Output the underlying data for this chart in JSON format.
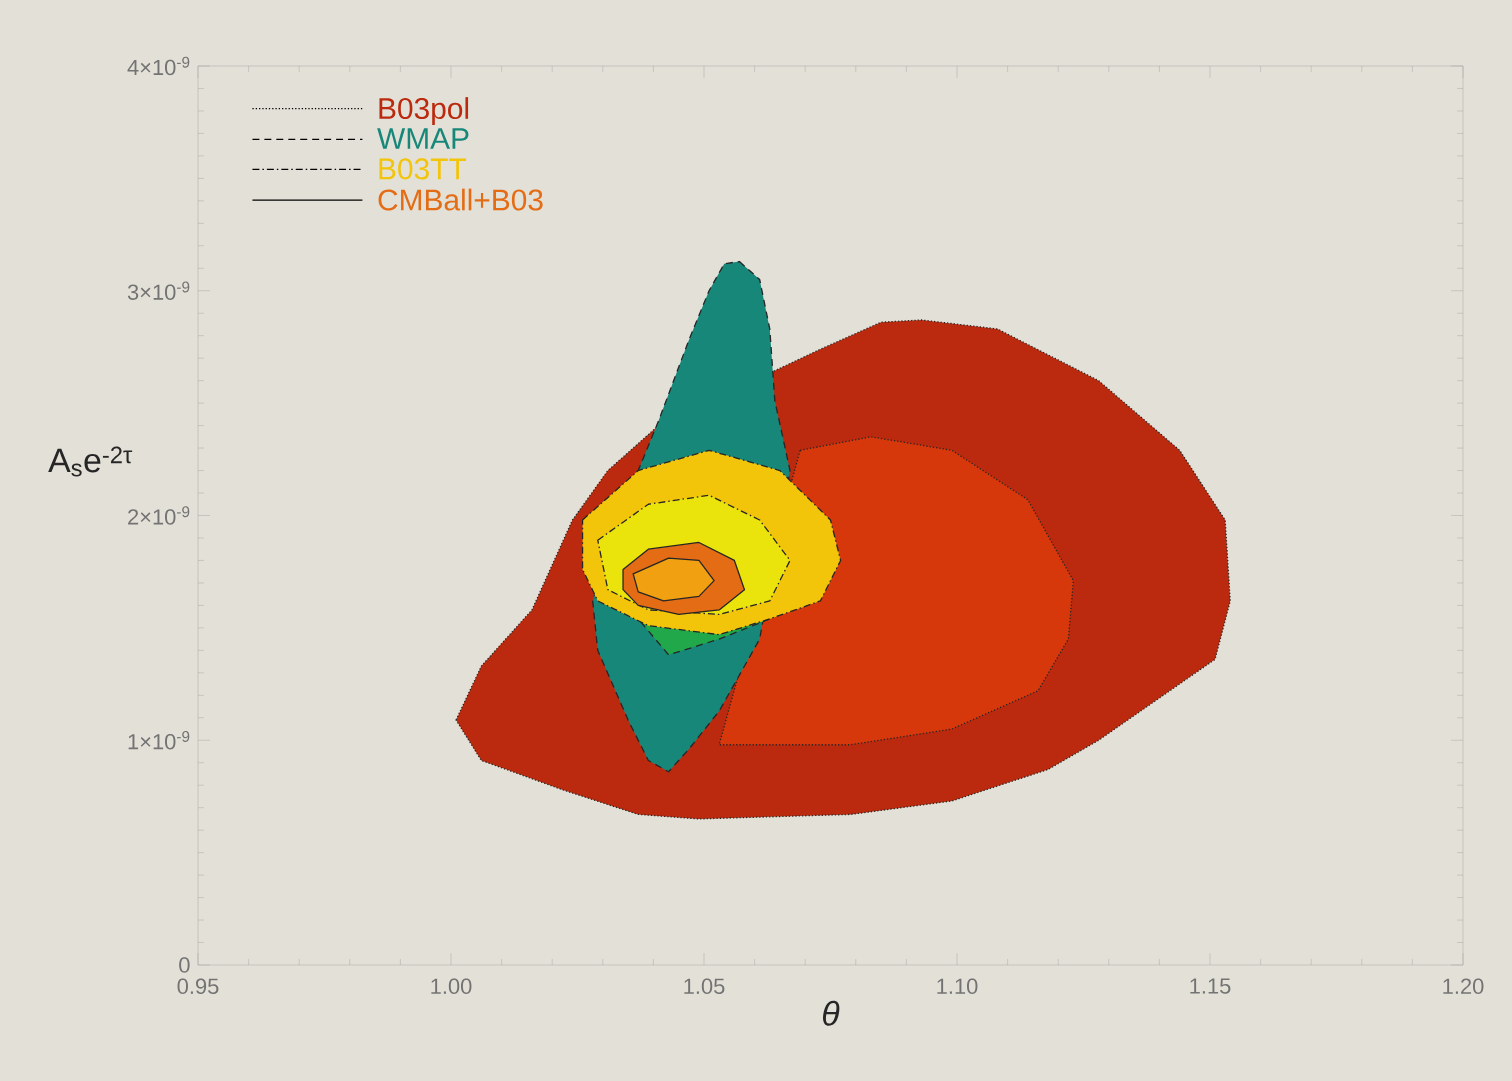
{
  "chart_data": {
    "type": "area",
    "xlabel": "*θ*",
    "ylabel": "A$_{s}$e$^{-2τ}$",
    "xlim": [
      0.95,
      1.2
    ],
    "ylim": [
      0,
      4e-09
    ],
    "xticks": [
      0.95,
      {
        "value": 1.0,
        "label": "1.00"
      },
      1.05,
      {
        "value": 1.1,
        "label": "1.10"
      },
      1.15,
      {
        "value": 1.2,
        "label": "1.20"
      }
    ],
    "yticks": [
      0,
      {
        "value": 1e-09,
        "label": "1×10$^{-9}$"
      },
      {
        "value": 2e-09,
        "label": "2×10$^{-9}$"
      },
      {
        "value": 3e-09,
        "label": "3×10$^{-9}$"
      },
      {
        "value": 4e-09,
        "label": "4×10$^{-9}$"
      }
    ],
    "legend": "top left",
    "grid": false,
    "series": [
      {
        "name": "B03pol",
        "color": "#bb2a0e",
        "line_style": "dotted",
        "x": [
          1.001,
          1.006,
          1.016,
          1.024,
          1.031,
          1.041,
          null,
          1.073,
          1.085,
          1.093,
          1.108,
          1.128,
          1.144,
          1.153,
          1.154,
          1.151,
          1.128,
          1.118,
          1.099,
          1.079,
          1.049,
          1.037,
          1.022,
          1.006
        ],
        "values": [
          1.09e-09,
          1.33e-09,
          1.58e-09,
          1.98e-09,
          2.2e-09,
          2.4e-09,
          null,
          2.74e-09,
          2.86e-09,
          2.87e-09,
          2.83e-09,
          2.6e-09,
          2.29e-09,
          1.98e-09,
          1.62e-09,
          1.36e-09,
          1e-09,
          8.7e-10,
          7.3e-10,
          6.7e-10,
          6.5e-10,
          6.7e-10,
          7.8e-10,
          9.1e-10
        ]
      },
      {
        "color": "#d6380c",
        "line_style": "dotted",
        "x": [
          null,
          null,
          null,
          1.069,
          1.083,
          1.099,
          1.114,
          1.123,
          1.122,
          1.116,
          1.099,
          1.079,
          1.053,
          null,
          null
        ],
        "values": [
          null,
          null,
          null,
          2.29e-09,
          2.35e-09,
          2.29e-09,
          2.07e-09,
          1.71e-09,
          1.45e-09,
          1.22e-09,
          1.05e-09,
          9.8e-10,
          9.8e-10,
          null,
          null
        ]
      },
      {
        "name": "WMAP",
        "color": "#17877a",
        "line_style": "dashed",
        "x": [
          1.057,
          1.061,
          1.063,
          1.064,
          1.067,
          null,
          null,
          1.061,
          1.053,
          1.047,
          1.043,
          1.039,
          1.035,
          1.029,
          1.028,
          null,
          1.037,
          1.041,
          1.047,
          1.051,
          1.054
        ],
        "values": [
          3.13e-09,
          3.05e-09,
          2.83e-09,
          2.51e-09,
          2.2e-09,
          null,
          null,
          1.45e-09,
          1.13e-09,
          9.6e-10,
          8.6e-10,
          9.1e-10,
          1.09e-09,
          1.4e-09,
          1.62e-09,
          null,
          2.2e-09,
          2.42e-09,
          2.78e-09,
          3e-09,
          3.12e-09
        ]
      },
      {
        "color": "#20a84a",
        "line_style": "dashed",
        "x": [
          null,
          null,
          null,
          null,
          1.063,
          1.053,
          1.043,
          1.037,
          null
        ],
        "values": [
          null,
          null,
          null,
          null,
          1.54e-09,
          1.45e-09,
          1.38e-09,
          1.54e-09,
          null
        ]
      },
      {
        "name": "B03TT",
        "color": "#f2c40a",
        "line_style": "dashdot",
        "x": [
          1.026,
          1.037,
          1.051,
          1.065,
          1.075,
          1.077,
          1.073,
          1.063,
          1.053,
          1.039,
          1.029,
          1.026
        ],
        "values": [
          1.98e-09,
          2.2e-09,
          2.29e-09,
          2.2e-09,
          1.98e-09,
          1.8e-09,
          1.62e-09,
          1.54e-09,
          1.47e-09,
          1.51e-09,
          1.62e-09,
          1.76e-09
        ]
      },
      {
        "color": "#eae30c",
        "line_style": "dashdot",
        "x": [
          1.029,
          1.039,
          1.051,
          1.061,
          1.067,
          1.063,
          1.053,
          1.039,
          1.031
        ],
        "values": [
          1.89e-09,
          2.05e-09,
          2.09e-09,
          1.98e-09,
          1.8e-09,
          1.62e-09,
          1.56e-09,
          1.58e-09,
          1.67e-09
        ]
      },
      {
        "name": "CMBall+B03",
        "color": "#e46c14",
        "line_style": "solid",
        "x": [
          1.034,
          1.039,
          1.049,
          1.056,
          1.058,
          1.053,
          1.045,
          1.037,
          1.034
        ],
        "values": [
          1.76e-09,
          1.85e-09,
          1.88e-09,
          1.8e-09,
          1.67e-09,
          1.58e-09,
          1.56e-09,
          1.6e-09,
          1.67e-09
        ]
      },
      {
        "color": "#f0a010",
        "line_style": "solid",
        "x": [
          1.036,
          1.043,
          1.049,
          1.052,
          1.049,
          1.042,
          1.037
        ],
        "values": [
          1.74e-09,
          1.81e-09,
          1.8e-09,
          1.71e-09,
          1.64e-09,
          1.62e-09,
          1.66e-09
        ]
      }
    ]
  }
}
